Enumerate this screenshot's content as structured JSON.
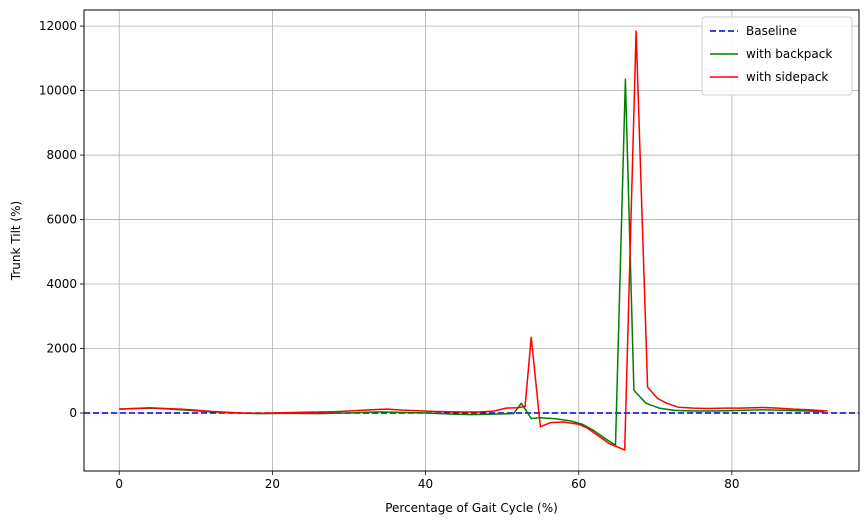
{
  "chart_data": {
    "type": "line",
    "title": "",
    "xlabel": "Percentage of Gait Cycle (%)",
    "ylabel": "Trunk Tilt (%)",
    "xlim": [
      -4.6,
      96.6
    ],
    "ylim": [
      -1800,
      12500
    ],
    "xticks": [
      0,
      20,
      40,
      60,
      80
    ],
    "yticks": [
      0,
      2000,
      4000,
      6000,
      8000,
      10000,
      12000
    ],
    "grid": true,
    "legend_position": "top-right",
    "series": [
      {
        "name": "Baseline",
        "color": "#0000cc",
        "style": "dashed",
        "x": [
          -4.6,
          96.6
        ],
        "y": [
          0,
          0
        ]
      },
      {
        "name": "with backpack",
        "color": "#008000",
        "style": "solid",
        "x": [
          0,
          2,
          4,
          6,
          8,
          10,
          12,
          14,
          16,
          18,
          20,
          22,
          24,
          26,
          28,
          30,
          32,
          34,
          36,
          38,
          40,
          42,
          44,
          46,
          48,
          50,
          51.5,
          52.5,
          53.8,
          55,
          57,
          59,
          60.5,
          62,
          63.5,
          64.8,
          66.1,
          67.2,
          68.8,
          70.5,
          72.5,
          75,
          78,
          81,
          84,
          87,
          90,
          92
        ],
        "y": [
          120,
          140,
          150,
          130,
          100,
          70,
          40,
          10,
          -10,
          -20,
          -15,
          -10,
          -15,
          -20,
          -10,
          0,
          20,
          30,
          20,
          10,
          0,
          -20,
          -40,
          -50,
          -40,
          -30,
          -20,
          300,
          -170,
          -150,
          -180,
          -250,
          -350,
          -550,
          -800,
          -1000,
          10350,
          700,
          300,
          150,
          80,
          60,
          60,
          80,
          100,
          80,
          60,
          40
        ]
      },
      {
        "name": "with sidepack",
        "color": "#ff0000",
        "style": "solid",
        "x": [
          0,
          2,
          4,
          6,
          8,
          10,
          12,
          14,
          16,
          18,
          20,
          22,
          24,
          26,
          28,
          30,
          32,
          34,
          35,
          37,
          39,
          41,
          43,
          45,
          47,
          49,
          50.5,
          52,
          53,
          53.8,
          55,
          56.3,
          58,
          60,
          61,
          62.5,
          64,
          66,
          67.5,
          69,
          70.3,
          71.5,
          73,
          75,
          77,
          79,
          81,
          84,
          86,
          88,
          90,
          92.5
        ],
        "y": [
          120,
          140,
          160,
          140,
          120,
          90,
          50,
          20,
          0,
          -10,
          0,
          10,
          20,
          30,
          40,
          60,
          90,
          110,
          120,
          90,
          70,
          50,
          40,
          30,
          30,
          60,
          150,
          160,
          200,
          2350,
          -430,
          -300,
          -280,
          -350,
          -450,
          -700,
          -950,
          -1150,
          11850,
          800,
          450,
          300,
          180,
          150,
          140,
          150,
          150,
          170,
          150,
          120,
          100,
          60
        ]
      }
    ]
  }
}
